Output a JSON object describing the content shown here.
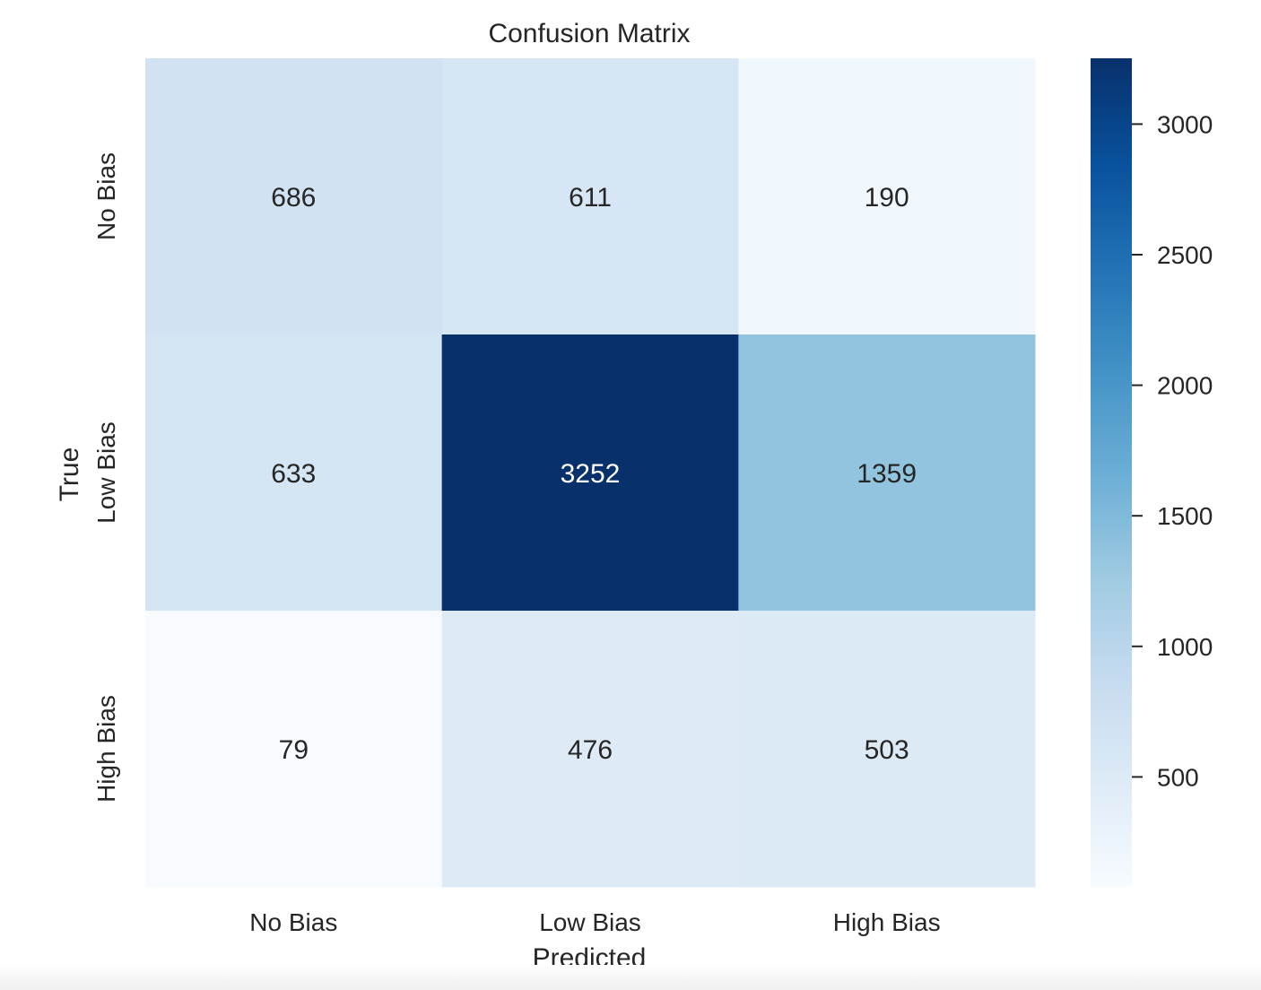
{
  "chart_data": {
    "type": "heatmap",
    "title": "Confusion Matrix",
    "xlabel": "Predicted",
    "ylabel": "True",
    "x_categories": [
      "No Bias",
      "Low Bias",
      "High Bias"
    ],
    "y_categories": [
      "No Bias",
      "Low Bias",
      "High Bias"
    ],
    "values": [
      [
        686,
        611,
        190
      ],
      [
        633,
        3252,
        1359
      ],
      [
        79,
        476,
        503
      ]
    ],
    "colormap": "Blues",
    "colorbar": {
      "range": [
        79,
        3252
      ],
      "ticks": [
        500,
        1000,
        1500,
        2000,
        2500,
        3000
      ],
      "tick_labels": [
        "500",
        "1000",
        "1500",
        "2000",
        "2500",
        "3000"
      ]
    },
    "grid": false
  }
}
